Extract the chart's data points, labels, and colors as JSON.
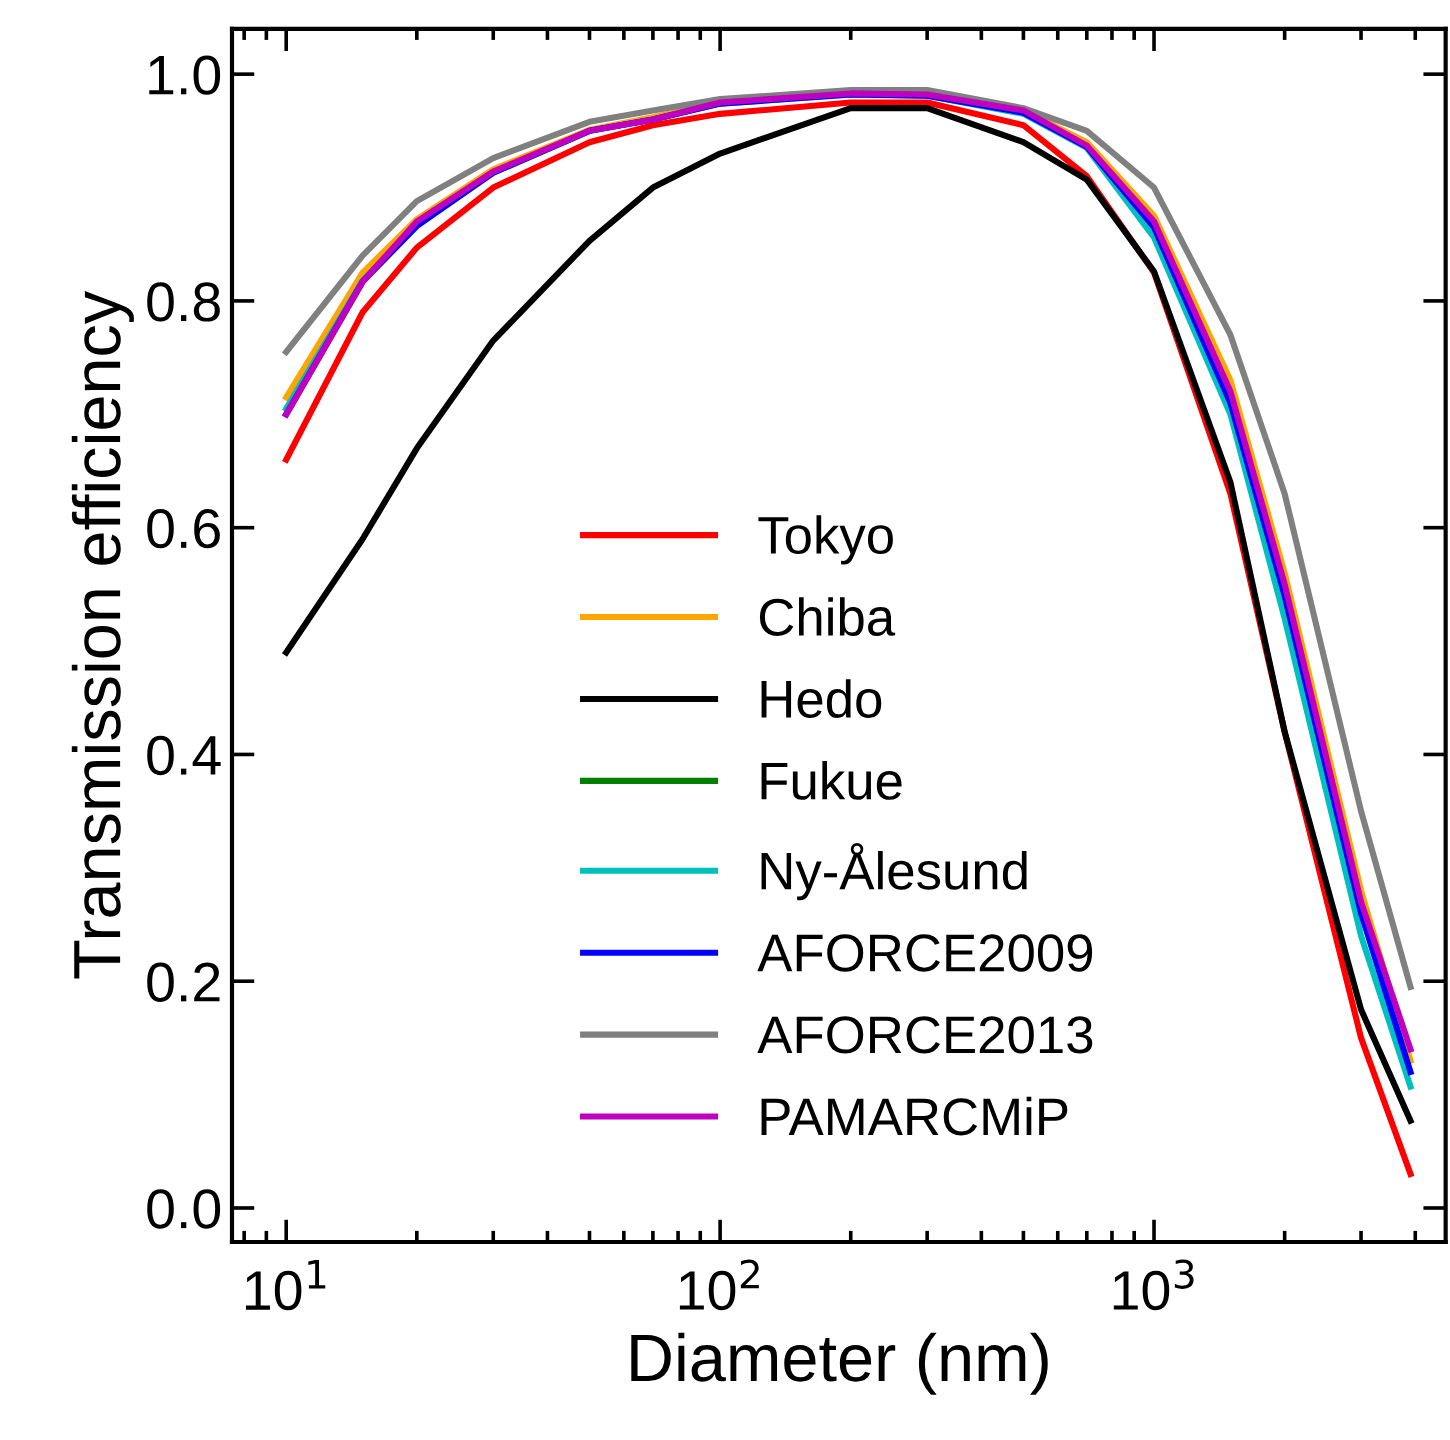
{
  "chart_data": {
    "type": "line",
    "xlabel": "Diameter (nm)",
    "ylabel": "Transmission efficiency",
    "log": "x",
    "x": [
      10,
      15,
      20,
      30,
      50,
      70,
      100,
      200,
      300,
      500,
      700,
      1000,
      1500,
      2000,
      3000,
      3900
    ],
    "xlim": [
      7.5,
      4700
    ],
    "xticks": [
      {
        "value": 10,
        "label": "10$^{1}$"
      },
      {
        "value": 100,
        "label": "10$^{2}$"
      },
      {
        "value": 1000,
        "label": "10$^{3}$"
      }
    ],
    "ylim": [
      -0.03,
      1.04
    ],
    "yticks": [
      {
        "value": 0,
        "label": "0.0"
      },
      0.2,
      0.4,
      0.6,
      0.8,
      {
        "value": 1,
        "label": "1.0"
      }
    ],
    "grid": false,
    "legend": "lower center",
    "marker": "none",
    "line_style": "solid",
    "series": [
      {
        "name": "Tokyo",
        "color": "#ff0000",
        "values": [
          0.66,
          0.79,
          0.847,
          0.9,
          0.94,
          0.955,
          0.965,
          0.975,
          0.975,
          0.955,
          0.91,
          0.825,
          0.63,
          0.42,
          0.15,
          0.03
        ]
      },
      {
        "name": "Chiba",
        "color": "#ffa500",
        "values": [
          0.715,
          0.825,
          0.872,
          0.916,
          0.951,
          0.962,
          0.975,
          0.983,
          0.982,
          0.968,
          0.94,
          0.875,
          0.73,
          0.56,
          0.28,
          0.13
        ]
      },
      {
        "name": "Hedo",
        "color": "#000000",
        "values": [
          0.49,
          0.59,
          0.67,
          0.765,
          0.853,
          0.9,
          0.93,
          0.97,
          0.97,
          0.94,
          0.907,
          0.826,
          0.64,
          0.42,
          0.175,
          0.077
        ]
      },
      {
        "name": "Fukue",
        "color": "#008000",
        "values": [
          null,
          null,
          null,
          null,
          null,
          null,
          null,
          null,
          null,
          null,
          null,
          null,
          null,
          null,
          null,
          null
        ]
      },
      {
        "name": "Ny-Ålesund",
        "color": "#00bfbf",
        "values": [
          0.705,
          0.818,
          0.867,
          0.913,
          0.95,
          0.96,
          0.974,
          0.982,
          0.981,
          0.965,
          0.935,
          0.856,
          0.7,
          0.52,
          0.24,
          0.107
        ]
      },
      {
        "name": "AFORCE2009",
        "color": "#0000ff",
        "values": [
          0.7,
          0.817,
          0.866,
          0.913,
          0.95,
          0.96,
          0.974,
          0.982,
          0.981,
          0.966,
          0.936,
          0.865,
          0.71,
          0.54,
          0.26,
          0.12
        ]
      },
      {
        "name": "AFORCE2013",
        "color": "#808080",
        "values": [
          0.755,
          0.84,
          0.888,
          0.926,
          0.958,
          0.968,
          0.978,
          0.986,
          0.986,
          0.97,
          0.95,
          0.9,
          0.77,
          0.63,
          0.35,
          0.195
        ]
      },
      {
        "name": "PAMARCMiP",
        "color": "#bf00bf",
        "values": [
          0.7,
          0.817,
          0.87,
          0.914,
          0.95,
          0.96,
          0.975,
          0.983,
          0.982,
          0.968,
          0.937,
          0.87,
          0.72,
          0.55,
          0.27,
          0.14
        ]
      }
    ]
  }
}
